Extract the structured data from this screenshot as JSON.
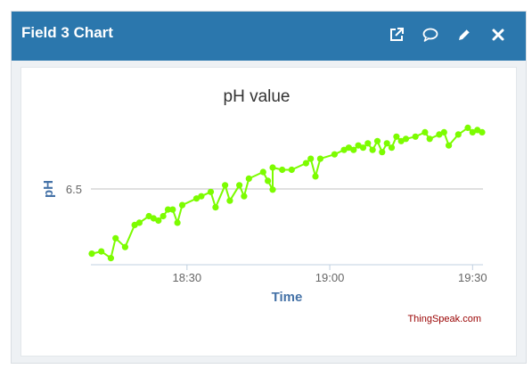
{
  "widget": {
    "title": "Field 3 Chart",
    "actions": [
      {
        "icon": "external-link-icon"
      },
      {
        "icon": "comment-icon"
      },
      {
        "icon": "pencil-icon"
      },
      {
        "icon": "close-icon"
      }
    ]
  },
  "colors": {
    "header_bg": "#2b77ad",
    "series": "#7cfc00",
    "axis_label": "#4572a7",
    "credit": "#990000"
  },
  "chart_data": {
    "type": "line",
    "title": "pH value",
    "xlabel": "Time",
    "ylabel": "pH",
    "x_ticks": [
      "18:30",
      "19:00",
      "19:30"
    ],
    "y_ticks": [
      "6.5"
    ],
    "grid": "horizontal at tick only",
    "credit": "ThingSpeak.com",
    "x_start": "18:10",
    "x_end": "19:32",
    "y_range": [
      6.18,
      6.83
    ],
    "series": [
      {
        "marker": "circle",
        "points": [
          [
            "18:10",
            6.23
          ],
          [
            "18:12",
            6.24
          ],
          [
            "18:14",
            6.21
          ],
          [
            "18:15",
            6.3
          ],
          [
            "18:17",
            6.26
          ],
          [
            "18:19",
            6.36
          ],
          [
            "18:20",
            6.37
          ],
          [
            "18:22",
            6.4
          ],
          [
            "18:23",
            6.39
          ],
          [
            "18:24",
            6.38
          ],
          [
            "18:25",
            6.4
          ],
          [
            "18:26",
            6.43
          ],
          [
            "18:27",
            6.43
          ],
          [
            "18:28",
            6.37
          ],
          [
            "18:29",
            6.45
          ],
          [
            "18:32",
            6.48
          ],
          [
            "18:33",
            6.49
          ],
          [
            "18:35",
            6.51
          ],
          [
            "18:36",
            6.44
          ],
          [
            "18:38",
            6.54
          ],
          [
            "18:39",
            6.47
          ],
          [
            "18:41",
            6.54
          ],
          [
            "18:42",
            6.49
          ],
          [
            "18:43",
            6.57
          ],
          [
            "18:46",
            6.6
          ],
          [
            "18:47",
            6.56
          ],
          [
            "18:48",
            6.52
          ],
          [
            "18:48",
            6.62
          ],
          [
            "18:50",
            6.61
          ],
          [
            "18:52",
            6.61
          ],
          [
            "18:55",
            6.64
          ],
          [
            "18:56",
            6.66
          ],
          [
            "18:57",
            6.58
          ],
          [
            "18:58",
            6.66
          ],
          [
            "19:01",
            6.68
          ],
          [
            "19:03",
            6.7
          ],
          [
            "19:04",
            6.71
          ],
          [
            "19:05",
            6.7
          ],
          [
            "19:06",
            6.72
          ],
          [
            "19:07",
            6.71
          ],
          [
            "19:08",
            6.73
          ],
          [
            "19:09",
            6.7
          ],
          [
            "19:10",
            6.74
          ],
          [
            "19:11",
            6.69
          ],
          [
            "19:12",
            6.73
          ],
          [
            "19:13",
            6.71
          ],
          [
            "19:14",
            6.76
          ],
          [
            "19:15",
            6.74
          ],
          [
            "19:16",
            6.75
          ],
          [
            "19:18",
            6.76
          ],
          [
            "19:20",
            6.78
          ],
          [
            "19:21",
            6.75
          ],
          [
            "19:23",
            6.77
          ],
          [
            "19:24",
            6.78
          ],
          [
            "19:25",
            6.72
          ],
          [
            "19:27",
            6.77
          ],
          [
            "19:29",
            6.8
          ],
          [
            "19:30",
            6.78
          ],
          [
            "19:31",
            6.79
          ],
          [
            "19:32",
            6.78
          ]
        ]
      }
    ]
  }
}
